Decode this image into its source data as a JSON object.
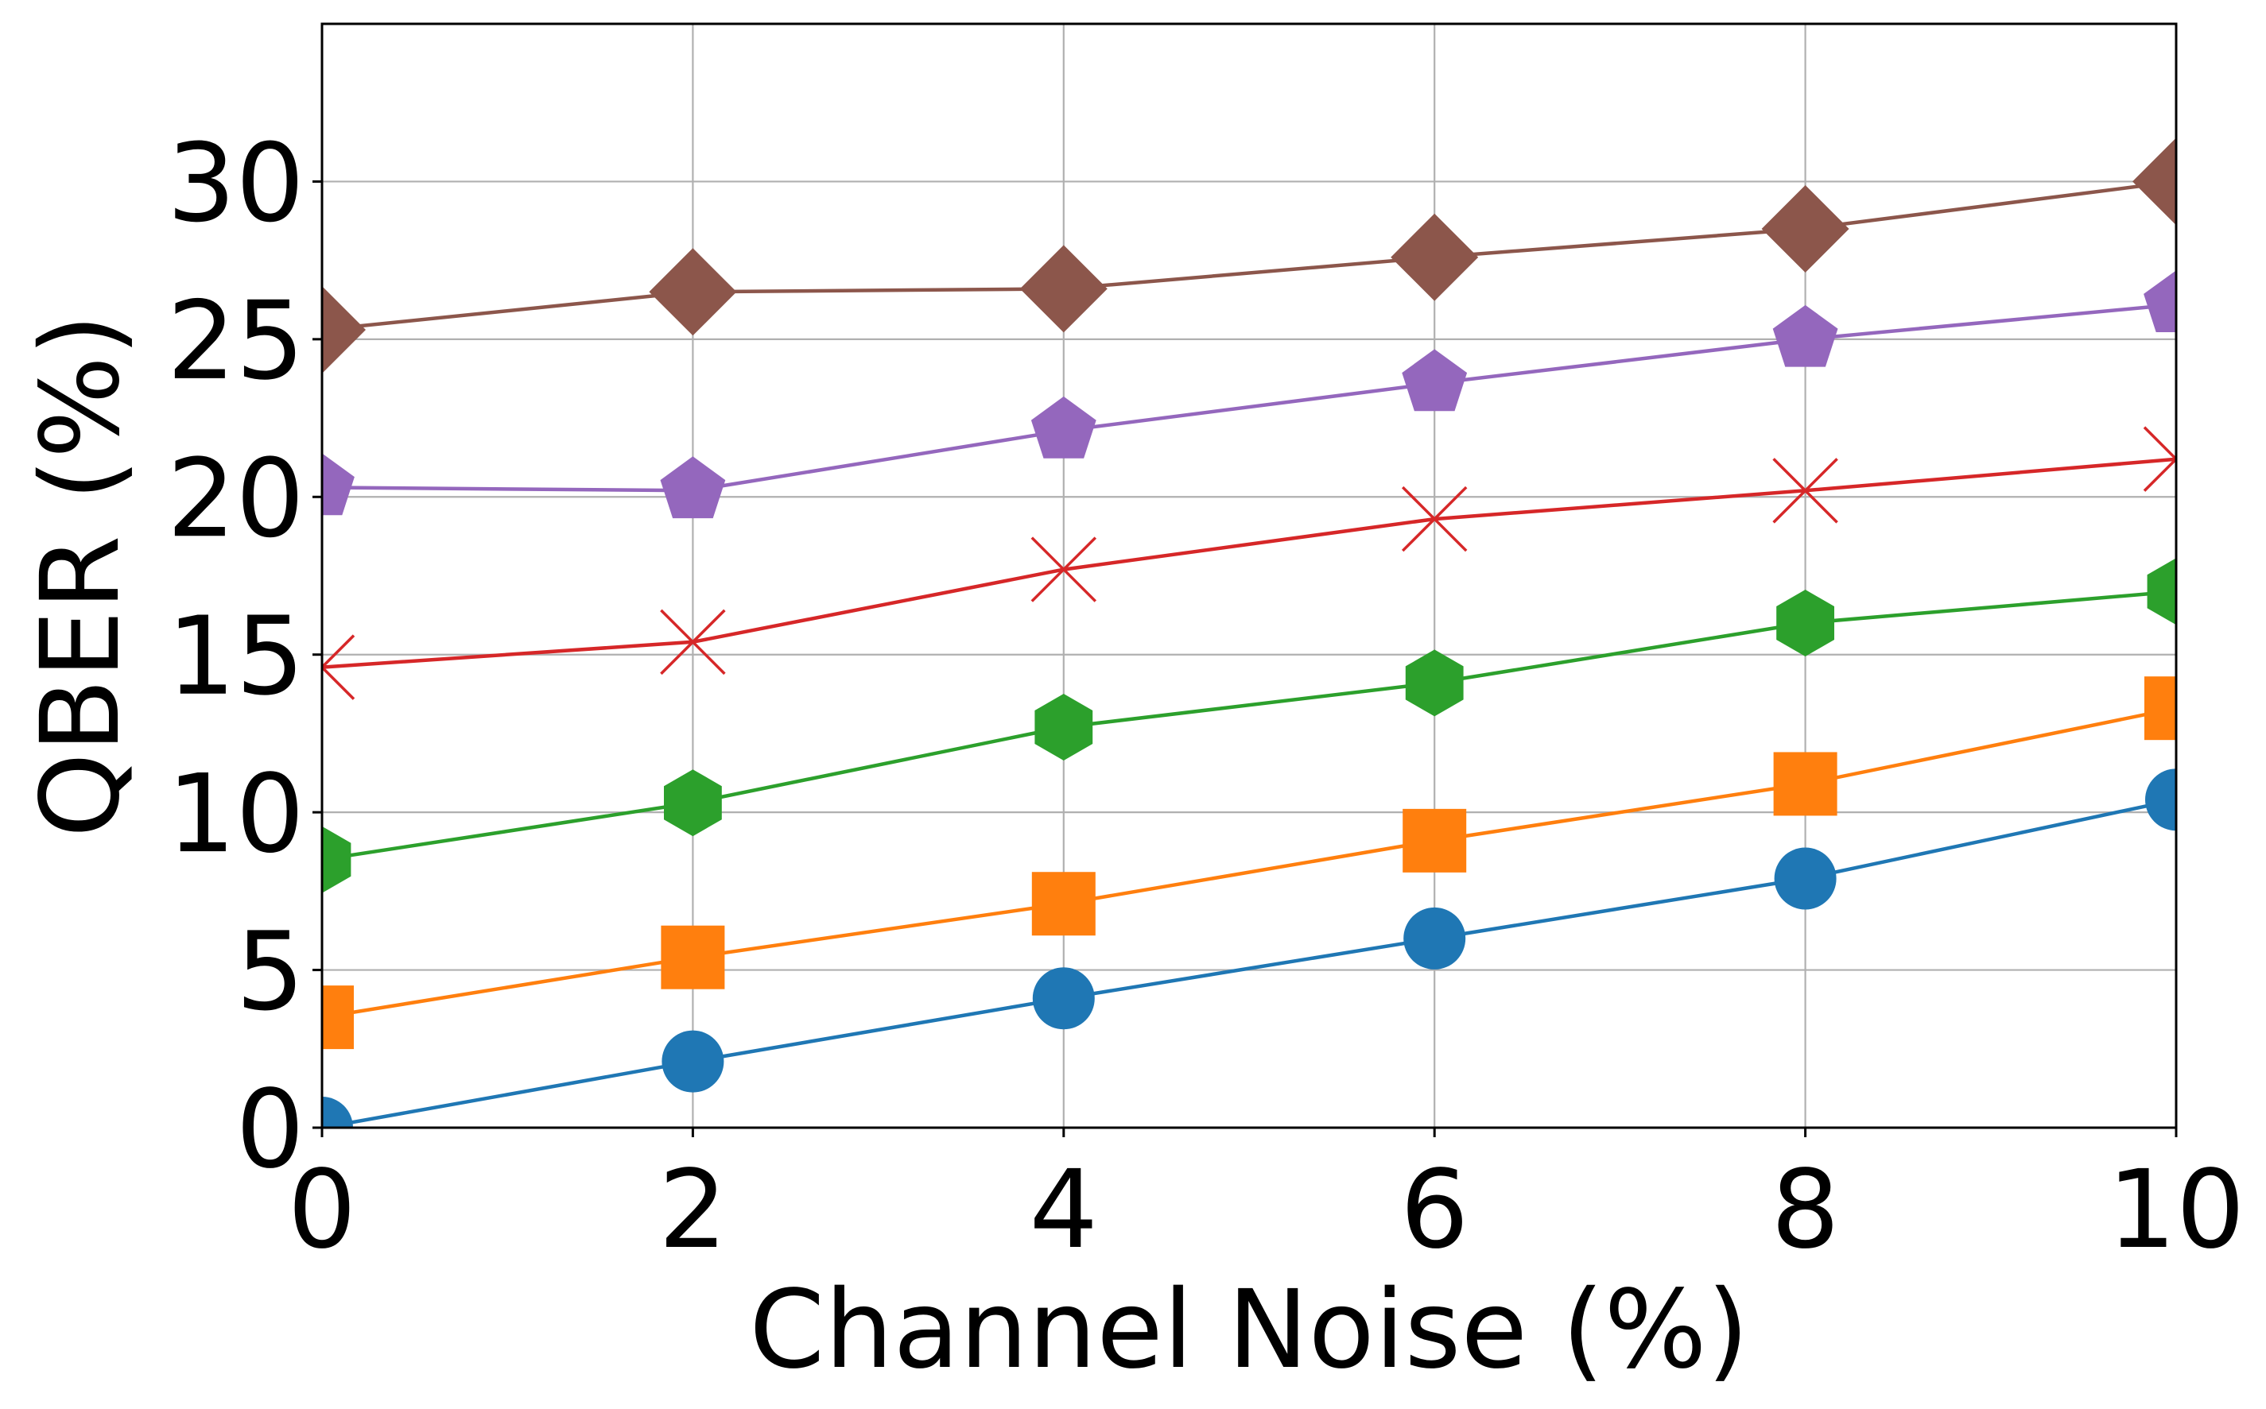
{
  "chart_data": {
    "type": "line",
    "title": "",
    "xlabel": "Channel Noise (%)",
    "ylabel": "QBER (%)",
    "x": [
      0,
      2,
      4,
      6,
      8,
      10
    ],
    "xlim": [
      0,
      10
    ],
    "ylim": [
      0,
      35
    ],
    "xticks": [
      0,
      2,
      4,
      6,
      8,
      10
    ],
    "yticks": [
      0,
      5,
      10,
      15,
      20,
      25,
      30
    ],
    "xtick_labels": [
      "0",
      "2",
      "4",
      "6",
      "8",
      "10"
    ],
    "ytick_labels": [
      "0",
      "5",
      "10",
      "15",
      "20",
      "25",
      "30"
    ],
    "grid": true,
    "legend": "none",
    "series": [
      {
        "color": "#1f77b4",
        "marker": "circle",
        "values": [
          0.0,
          2.1,
          4.1,
          6.0,
          7.9,
          10.4
        ]
      },
      {
        "color": "#ff7f0e",
        "marker": "square",
        "values": [
          3.5,
          5.4,
          7.1,
          9.1,
          10.9,
          13.3
        ]
      },
      {
        "color": "#2ca02c",
        "marker": "hexagon",
        "values": [
          8.5,
          10.3,
          12.7,
          14.1,
          16.0,
          17.0
        ]
      },
      {
        "color": "#d62728",
        "marker": "x",
        "values": [
          14.6,
          15.4,
          17.7,
          19.3,
          20.2,
          21.2
        ]
      },
      {
        "color": "#9467bd",
        "marker": "pentagon",
        "values": [
          20.3,
          20.2,
          22.1,
          23.6,
          25.0,
          26.1
        ]
      },
      {
        "color": "#8c564b",
        "marker": "diamond",
        "values": [
          25.3,
          26.5,
          26.6,
          27.6,
          28.5,
          30.0
        ]
      }
    ]
  }
}
